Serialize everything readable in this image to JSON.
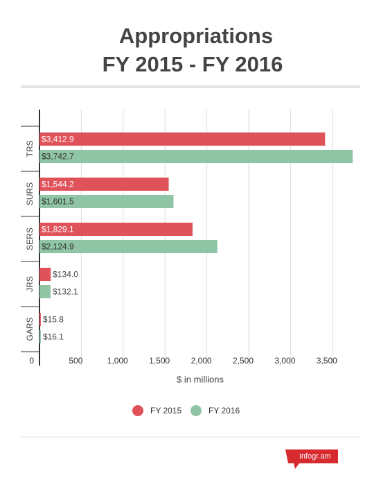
{
  "chart_data": {
    "type": "bar",
    "orientation": "horizontal",
    "title": "Appropriations",
    "subtitle": "FY 2015 - FY 2016",
    "xlabel": "$ in millions",
    "categories": [
      "TRS",
      "SURS",
      "SERS",
      "JRS",
      "GARS"
    ],
    "series": [
      {
        "name": "FY 2015",
        "color": "#e0525a",
        "values": [
          3412.9,
          1544.2,
          1829.1,
          134.0,
          15.8
        ],
        "value_labels": [
          "$3,412.9",
          "$1,544.2",
          "$1,829.1",
          "$134.0",
          "$15.8"
        ]
      },
      {
        "name": "FY 2016",
        "color": "#8fc5a5",
        "values": [
          3742.7,
          1601.5,
          2124.9,
          132.1,
          16.1
        ],
        "value_labels": [
          "$3,742.7",
          "$1,601.5",
          "$2,124.9",
          "$132.1",
          "$16.1"
        ]
      }
    ],
    "xlim": [
      0,
      3750
    ],
    "xticks": [
      0,
      500,
      {
        "value": 1000,
        "label": "1,000"
      },
      {
        "value": 1500,
        "label": "1,500"
      },
      {
        "value": 2000,
        "label": "2,000"
      },
      {
        "value": 2500,
        "label": "2,500"
      },
      {
        "value": 3000,
        "label": "3,000"
      },
      {
        "value": 3500,
        "label": "3,500"
      }
    ],
    "grid": true,
    "legend": "bottom",
    "logo": "infogr.am"
  }
}
